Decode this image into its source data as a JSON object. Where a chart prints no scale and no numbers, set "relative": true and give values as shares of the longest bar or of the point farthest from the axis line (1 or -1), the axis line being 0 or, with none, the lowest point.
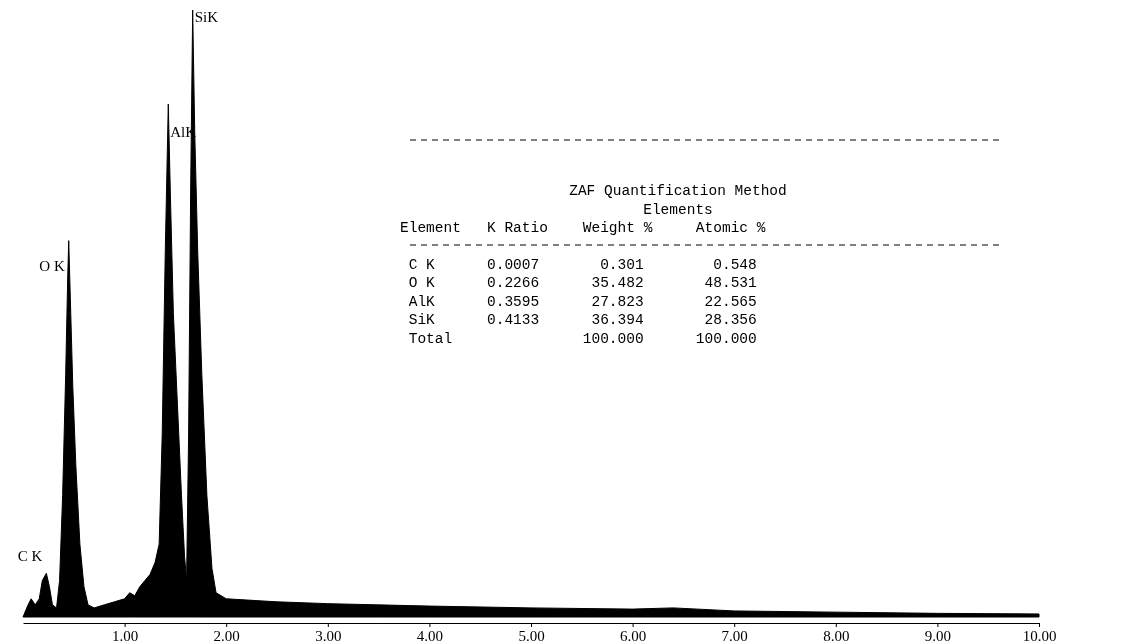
{
  "chart_data": {
    "type": "area",
    "relative": true,
    "color": "#000000",
    "xlim": [
      0,
      10
    ],
    "xticks": [
      {
        "value": 1,
        "label": "1.00"
      },
      {
        "value": 2,
        "label": "2.00"
      },
      {
        "value": 3,
        "label": "3.00"
      },
      {
        "value": 4,
        "label": "4.00"
      },
      {
        "value": 5,
        "label": "5.00"
      },
      {
        "value": 6,
        "label": "6.00"
      },
      {
        "value": 7,
        "label": "7.00"
      },
      {
        "value": 8,
        "label": "8.00"
      },
      {
        "value": 9,
        "label": "9.00"
      },
      {
        "value": 10,
        "label": "10.00"
      }
    ],
    "x": [
      0,
      0.05,
      0.08,
      0.12,
      0.16,
      0.19,
      0.23,
      0.26,
      0.29,
      0.33,
      0.36,
      0.39,
      0.42,
      0.44,
      0.45,
      0.47,
      0.49,
      0.52,
      0.56,
      0.6,
      0.64,
      0.7,
      0.8,
      0.9,
      1.0,
      1.05,
      1.1,
      1.15,
      1.2,
      1.25,
      1.3,
      1.34,
      1.37,
      1.4,
      1.43,
      1.45,
      1.48,
      1.52,
      1.56,
      1.59,
      1.61,
      1.63,
      1.65,
      1.67,
      1.69,
      1.72,
      1.76,
      1.81,
      1.86,
      1.9,
      2.0,
      2.5,
      3.0,
      3.5,
      4.0,
      5.0,
      6.0,
      6.4,
      7.0,
      8.0,
      9.0,
      10.0
    ],
    "values": [
      0,
      0.02,
      0.03,
      0.02,
      0.03,
      0.06,
      0.072,
      0.05,
      0.02,
      0.015,
      0.06,
      0.2,
      0.4,
      0.56,
      0.62,
      0.5,
      0.38,
      0.25,
      0.12,
      0.05,
      0.02,
      0.015,
      0.02,
      0.025,
      0.03,
      0.04,
      0.035,
      0.05,
      0.06,
      0.07,
      0.09,
      0.12,
      0.3,
      0.6,
      0.845,
      0.7,
      0.5,
      0.35,
      0.2,
      0.1,
      0.06,
      0.3,
      0.7,
      1,
      0.8,
      0.6,
      0.4,
      0.2,
      0.08,
      0.04,
      0.03,
      0.025,
      0.022,
      0.02,
      0.018,
      0.015,
      0.013,
      0.015,
      0.01,
      0.008,
      0.006,
      0.005
    ],
    "annotations": [
      {
        "text": "C K",
        "x": 0.23,
        "y": 0.072
      },
      {
        "text": "O K",
        "x": 0.45,
        "y": 0.55
      },
      {
        "text": "AlK",
        "x": 1.43,
        "y": 0.79
      },
      {
        "text": "SiK",
        "x": 1.67,
        "y": 0.98
      },
      "ZAF Quantification Method",
      "Elements",
      "Element   K Ratio    Weight %     Atomic %",
      " C K      0.0007       0.301        0.548",
      " O K      0.2266      35.482       48.531",
      " AlK      0.3595      27.823       22.565",
      " SiK      0.4133      36.394       28.356",
      " Total               100.000      100.000"
    ]
  }
}
